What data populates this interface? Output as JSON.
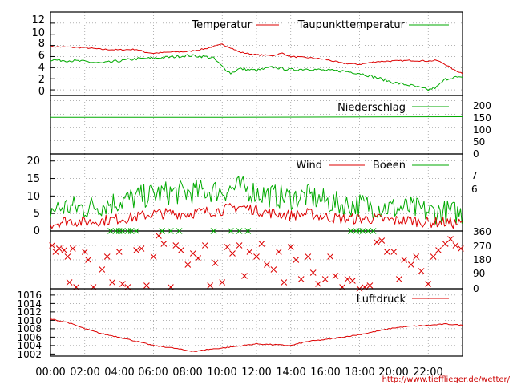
{
  "colors": {
    "red": "#dd0000",
    "green": "#00aa00"
  },
  "url": "http://www.tiefflieger.de/wetter/",
  "x_labels": [
    "00:00",
    "02:00",
    "04:00",
    "06:00",
    "08:00",
    "10:00",
    "12:00",
    "14:00",
    "16:00",
    "18:00",
    "20:00",
    "22:00"
  ],
  "panels": {
    "temp": {
      "legend": [
        "Temperatur",
        "Taupunkttemperatur"
      ],
      "y_ticks": [
        "0",
        "2",
        "4",
        "6",
        "8",
        "10",
        "12"
      ],
      "ylim": [
        -1,
        14
      ]
    },
    "rain": {
      "legend": [
        "Niederschlag"
      ],
      "y_ticks_right": [
        "0",
        "50",
        "100",
        "150",
        "200"
      ],
      "ylim": [
        0,
        220
      ]
    },
    "wind": {
      "legend": [
        "Wind",
        "Boeen"
      ],
      "y_ticks": [
        "0",
        "5",
        "10",
        "15",
        "20"
      ],
      "y_ticks_right": [
        "6",
        "7"
      ],
      "ylim": [
        0,
        22
      ]
    },
    "dir": {
      "y_ticks_right": [
        "0",
        "90",
        "180",
        "270",
        "360"
      ],
      "ylim": [
        0,
        360
      ]
    },
    "pressure": {
      "legend": [
        "Luftdruck"
      ],
      "y_ticks": [
        "1002",
        "1004",
        "1006",
        "1008",
        "1010",
        "1012",
        "1014",
        "1016"
      ],
      "ylim": [
        1001.5,
        1017.5
      ]
    }
  },
  "chart_data": [
    {
      "type": "line",
      "x_unit": "hours",
      "xlim": [
        0,
        24
      ],
      "ylim": [
        -1,
        14
      ],
      "series": [
        {
          "name": "Temperatur",
          "color": "#dd0000",
          "x": [
            0,
            1,
            2,
            3,
            4,
            5,
            5.5,
            6,
            7,
            8,
            9,
            10,
            10.5,
            11,
            12,
            13,
            13.5,
            14,
            15,
            16,
            17,
            18,
            19,
            20,
            21,
            22,
            22.5,
            23,
            23.5,
            24
          ],
          "y": [
            7.8,
            7.7,
            7.6,
            7.3,
            7.2,
            7.3,
            6.8,
            6.6,
            6.8,
            6.9,
            7.4,
            8.2,
            7.6,
            6.8,
            6.3,
            6.2,
            6.6,
            6.0,
            5.8,
            5.5,
            4.8,
            4.6,
            5.1,
            5.2,
            5.3,
            5.2,
            5.3,
            4.6,
            3.6,
            3.0
          ]
        },
        {
          "name": "Taupunkttemperatur",
          "color": "#00aa00",
          "x": [
            0,
            1,
            2,
            3,
            4,
            5,
            6,
            7,
            8,
            9,
            9.5,
            10,
            10.5,
            11,
            12,
            13,
            14,
            15,
            16,
            17,
            18,
            19,
            20,
            21,
            22,
            22.5,
            23,
            23.5,
            24
          ],
          "y": [
            5.4,
            5.3,
            5.1,
            4.8,
            5.2,
            5.6,
            5.7,
            5.9,
            6.2,
            6.0,
            5.7,
            4.2,
            3.0,
            3.8,
            3.5,
            4.1,
            3.6,
            3.8,
            3.5,
            3.4,
            3.0,
            2.2,
            1.3,
            0.8,
            0.0,
            0.5,
            1.9,
            2.3,
            2.1
          ]
        }
      ]
    },
    {
      "type": "line",
      "x_unit": "hours",
      "xlim": [
        0,
        24
      ],
      "ylim": [
        0,
        220
      ],
      "series": [
        {
          "name": "Niederschlag",
          "color": "#00aa00",
          "x": [
            0,
            10,
            24
          ],
          "y": [
            138,
            138,
            140
          ]
        }
      ]
    },
    {
      "type": "line",
      "x_unit": "hours",
      "xlim": [
        0,
        24
      ],
      "ylim": [
        0,
        22
      ],
      "series": [
        {
          "name": "Wind",
          "color": "#dd0000",
          "x": [
            0,
            1,
            2,
            3,
            4,
            5,
            6,
            7,
            8,
            9,
            10,
            11,
            12,
            13,
            14,
            15,
            16,
            17,
            18,
            19,
            20,
            21,
            22,
            23,
            24
          ],
          "y": [
            2,
            3,
            2.5,
            3,
            3.5,
            4,
            5,
            5,
            5,
            5.5,
            6,
            7,
            6,
            5,
            4.5,
            5,
            4,
            3.5,
            3.5,
            3.5,
            3,
            3,
            2.5,
            2.5,
            2
          ]
        },
        {
          "name": "Boeen",
          "color": "#00aa00",
          "x": [
            0,
            1,
            2,
            3,
            4,
            5,
            6,
            7,
            8,
            9,
            10,
            11,
            12,
            13,
            14,
            15,
            16,
            17,
            18,
            19,
            20,
            21,
            22,
            23,
            24
          ],
          "y": [
            6,
            7,
            6.5,
            7.5,
            8.5,
            9.5,
            10.5,
            11,
            11,
            11.5,
            11.5,
            12.5,
            11,
            10,
            9.5,
            10,
            8.5,
            7.5,
            7.5,
            7,
            6.5,
            6.5,
            5.5,
            5.5,
            5
          ]
        }
      ]
    },
    {
      "type": "scatter",
      "x_unit": "hours",
      "xlim": [
        0,
        24
      ],
      "ylim": [
        0,
        360
      ],
      "series": [
        {
          "name": "",
          "color": "#dd0000",
          "x": [
            0.1,
            0.3,
            0.5,
            0.8,
            1,
            1.1,
            1.3,
            1.5,
            2,
            2.2,
            2.5,
            3,
            3.3,
            3.6,
            4,
            4.2,
            4.5,
            5,
            5.3,
            5.6,
            6,
            6.3,
            6.6,
            7,
            7.3,
            7.6,
            8,
            8.3,
            8.6,
            9,
            9.3,
            9.6,
            10,
            10.3,
            10.6,
            11,
            11.3,
            11.6,
            12,
            12.3,
            12.6,
            13,
            13.3,
            13.6,
            14,
            14.3,
            14.6,
            15,
            15.3,
            15.6,
            16,
            16.3,
            16.6,
            17,
            17.3,
            17.6,
            18,
            18.3,
            18.6,
            19,
            19.3,
            19.6,
            20,
            20.3,
            20.6,
            21,
            21.3,
            21.6,
            22,
            22.3,
            22.6,
            23,
            23.3,
            23.6,
            23.9
          ],
          "y": [
            270,
            230,
            250,
            240,
            200,
            40,
            250,
            10,
            230,
            180,
            10,
            120,
            200,
            40,
            230,
            30,
            10,
            240,
            250,
            20,
            200,
            330,
            280,
            10,
            270,
            240,
            150,
            220,
            190,
            270,
            20,
            160,
            40,
            260,
            220,
            270,
            80,
            230,
            200,
            280,
            150,
            120,
            230,
            40,
            260,
            180,
            60,
            200,
            100,
            30,
            60,
            200,
            80,
            10,
            60,
            50,
            0,
            10,
            20,
            290,
            300,
            230,
            230,
            60,
            180,
            150,
            200,
            110,
            30,
            200,
            240,
            280,
            310,
            270,
            250
          ]
        },
        {
          "name": "",
          "color": "#00aa00",
          "x": [
            3.5,
            3.8,
            4,
            4.2,
            4.5,
            4.7,
            5,
            6.5,
            7,
            7.5,
            9.5,
            10.5,
            11,
            11.5,
            17.5,
            17.8,
            18,
            18.2,
            18.5,
            18.8
          ],
          "y": [
            360,
            360,
            360,
            360,
            360,
            360,
            360,
            360,
            360,
            360,
            360,
            360,
            360,
            360,
            360,
            360,
            360,
            360,
            360,
            360
          ]
        }
      ]
    },
    {
      "type": "line",
      "x_unit": "hours",
      "xlim": [
        0,
        24
      ],
      "ylim": [
        1001.5,
        1017.5
      ],
      "series": [
        {
          "name": "Luftdruck",
          "color": "#dd0000",
          "x": [
            0,
            1,
            2,
            3,
            4,
            5,
            6,
            7,
            8,
            8.5,
            9,
            10,
            11,
            12,
            13,
            14,
            15,
            16,
            17,
            18,
            19,
            20,
            21,
            22,
            23,
            23.5,
            24
          ],
          "y": [
            1010.3,
            1009.5,
            1008.0,
            1006.8,
            1006.0,
            1005.0,
            1004.0,
            1003.5,
            1002.8,
            1002.6,
            1003.0,
            1003.4,
            1003.9,
            1004.4,
            1004.2,
            1004.0,
            1005.0,
            1005.4,
            1006.0,
            1006.6,
            1007.4,
            1008.2,
            1008.6,
            1008.8,
            1009.1,
            1009.0,
            1008.8
          ]
        }
      ]
    }
  ]
}
